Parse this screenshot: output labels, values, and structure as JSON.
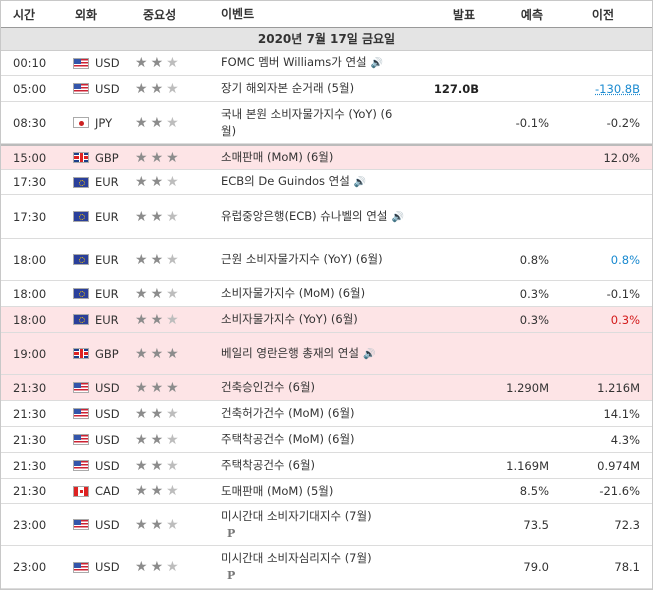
{
  "headers": {
    "time": "시간",
    "currency": "외화",
    "importance": "중요성",
    "event": "이벤트",
    "actual": "발표",
    "forecast": "예측",
    "previous": "이전"
  },
  "date_label": "2020년 7월 17일 금요일",
  "icons": {
    "speaker": "speaker-icon",
    "presentation": "P"
  },
  "rows": [
    {
      "time": "00:10",
      "flag": "us",
      "cur": "USD",
      "stars": 2,
      "event": "FOMC 멤버 Williams가 연설",
      "speaker": true,
      "actual": "",
      "forecast": "",
      "previous": "",
      "h": 25
    },
    {
      "time": "05:00",
      "flag": "us",
      "cur": "USD",
      "stars": 2,
      "event": "장기 해외자본 순거래 (5월)",
      "actual": "127.0B",
      "forecast": "",
      "previous": "-130.8B",
      "prevStyle": "blue underline",
      "actStyle": "bold",
      "h": 26
    },
    {
      "time": "08:30",
      "flag": "jp",
      "cur": "JPY",
      "stars": 2,
      "event": "국내 본원 소비자물가지수 (YoY) (6월)",
      "actual": "",
      "forecast": "-0.1%",
      "previous": "-0.2%",
      "h": 42
    },
    {
      "time": "15:00",
      "flag": "gb",
      "cur": "GBP",
      "stars": 3,
      "event": "소매판매 (MoM) (6월)",
      "actual": "",
      "forecast": "",
      "previous": "12.0%",
      "hl": true,
      "sep": true,
      "h": 26
    },
    {
      "time": "17:30",
      "flag": "eu",
      "cur": "EUR",
      "stars": 2,
      "event": "ECB의 De Guindos 연설",
      "speaker": true,
      "actual": "",
      "forecast": "",
      "previous": "",
      "h": 25
    },
    {
      "time": "17:30",
      "flag": "eu",
      "cur": "EUR",
      "stars": 2,
      "event": "유럽중앙은행(ECB) 슈나벨의 연설",
      "speaker": true,
      "actual": "",
      "forecast": "",
      "previous": "",
      "h": 44
    },
    {
      "time": "18:00",
      "flag": "eu",
      "cur": "EUR",
      "stars": 2,
      "event": "근원 소비자물가지수 (YoY) (6월)",
      "actual": "",
      "forecast": "0.8%",
      "previous": "0.8%",
      "prevStyle": "blue",
      "h": 42
    },
    {
      "time": "18:00",
      "flag": "eu",
      "cur": "EUR",
      "stars": 2,
      "event": "소비자물가지수 (MoM) (6월)",
      "actual": "",
      "forecast": "0.3%",
      "previous": "-0.1%",
      "h": 26
    },
    {
      "time": "18:00",
      "flag": "eu",
      "cur": "EUR",
      "stars": 2,
      "event": "소비자물가지수 (YoY) (6월)",
      "actual": "",
      "forecast": "0.3%",
      "previous": "0.3%",
      "prevStyle": "red",
      "hl": true,
      "h": 26
    },
    {
      "time": "19:00",
      "flag": "gb",
      "cur": "GBP",
      "stars": 3,
      "event": "베일리 영란은행 총재의 연설",
      "speaker": true,
      "actual": "",
      "forecast": "",
      "previous": "",
      "hl": true,
      "h": 42
    },
    {
      "time": "21:30",
      "flag": "us",
      "cur": "USD",
      "stars": 3,
      "event": "건축승인건수 (6월)",
      "actual": "",
      "forecast": "1.290M",
      "previous": "1.216M",
      "hl": true,
      "h": 26
    },
    {
      "time": "21:30",
      "flag": "us",
      "cur": "USD",
      "stars": 2,
      "event": "건축허가건수 (MoM) (6월)",
      "actual": "",
      "forecast": "",
      "previous": "14.1%",
      "h": 26
    },
    {
      "time": "21:30",
      "flag": "us",
      "cur": "USD",
      "stars": 2,
      "event": "주택착공건수 (MoM) (6월)",
      "actual": "",
      "forecast": "",
      "previous": "4.3%",
      "h": 26
    },
    {
      "time": "21:30",
      "flag": "us",
      "cur": "USD",
      "stars": 2,
      "event": "주택착공건수 (6월)",
      "actual": "",
      "forecast": "1.169M",
      "previous": "0.974M",
      "h": 26
    },
    {
      "time": "21:30",
      "flag": "ca",
      "cur": "CAD",
      "stars": 2,
      "event": "도매판매 (MoM) (5월)",
      "actual": "",
      "forecast": "8.5%",
      "previous": "-21.6%",
      "h": 25
    },
    {
      "time": "23:00",
      "flag": "us",
      "cur": "USD",
      "stars": 2,
      "event": "미시간대 소비자기대지수 (7월)",
      "badge": true,
      "actual": "",
      "forecast": "73.5",
      "previous": "72.3",
      "h": 42
    },
    {
      "time": "23:00",
      "flag": "us",
      "cur": "USD",
      "stars": 2,
      "event": "미시간대 소비자심리지수 (7월)",
      "badge": true,
      "actual": "",
      "forecast": "79.0",
      "previous": "78.1",
      "h": 43
    }
  ]
}
